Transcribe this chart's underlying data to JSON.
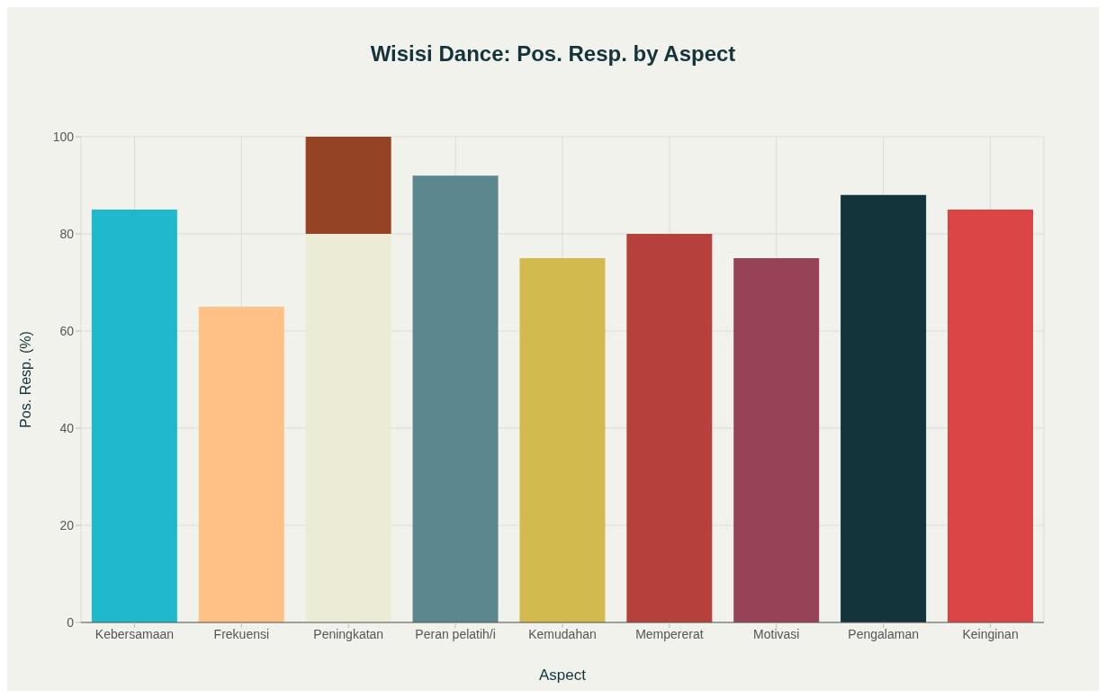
{
  "chart_data": {
    "type": "bar",
    "title": "Wisisi Dance: Pos. Resp. by Aspect",
    "xlabel": "Aspect",
    "ylabel": "Pos. Resp. (%)",
    "categories": [
      "Kebersamaan",
      "Frekuensi",
      "Peningkatan",
      "Peran pelatih/i",
      "Kemudahan",
      "Mempererat",
      "Motivasi",
      "Pengalaman",
      "Keinginan"
    ],
    "stacked": true,
    "series": [
      {
        "colors": [
          "#1fb8cd",
          "#ffc185",
          "#ecebd5",
          "#5d878f",
          "#d2ba4c",
          "#b4413c",
          "#964355",
          "#13343b",
          "#db4545"
        ],
        "values": [
          85,
          65,
          80,
          92,
          75,
          80,
          75,
          88,
          85
        ]
      },
      {
        "color": "#944324",
        "values": [
          null,
          null,
          20,
          null,
          null,
          null,
          null,
          null,
          null
        ]
      }
    ],
    "ylim": [
      0,
      100
    ],
    "yticks": [
      0,
      20,
      40,
      60,
      80,
      100
    ],
    "grid": true,
    "legend": false
  }
}
